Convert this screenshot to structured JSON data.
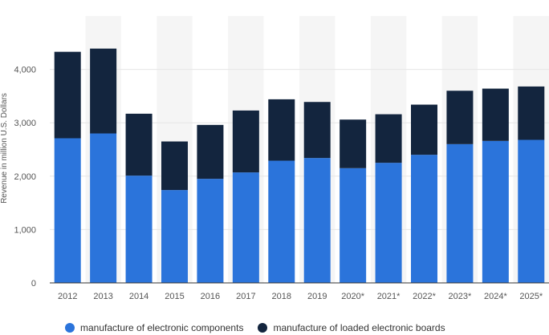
{
  "chart_data": {
    "type": "bar",
    "stacked": true,
    "categories": [
      "2012",
      "2013",
      "2014",
      "2015",
      "2016",
      "2017",
      "2018",
      "2019",
      "2020*",
      "2021*",
      "2022*",
      "2023*",
      "2024*",
      "2025*"
    ],
    "series": [
      {
        "name": "manufacture of electronic components",
        "color": "#2b74db",
        "values": [
          2710,
          2800,
          2010,
          1740,
          1950,
          2070,
          2290,
          2340,
          2150,
          2250,
          2400,
          2600,
          2660,
          2680
        ]
      },
      {
        "name": "manufacture of loaded electronic boards",
        "color": "#13253e",
        "values": [
          1620,
          1590,
          1160,
          910,
          1010,
          1160,
          1150,
          1050,
          910,
          910,
          940,
          1000,
          980,
          1000
        ]
      }
    ],
    "ylabel": "Revenue in million U.S. Dollars",
    "yticks": [
      "0",
      "1,000",
      "2,000",
      "3,000",
      "4,000"
    ],
    "ylim": [
      0,
      5000
    ],
    "grid": true,
    "legend_position": "bottom"
  }
}
